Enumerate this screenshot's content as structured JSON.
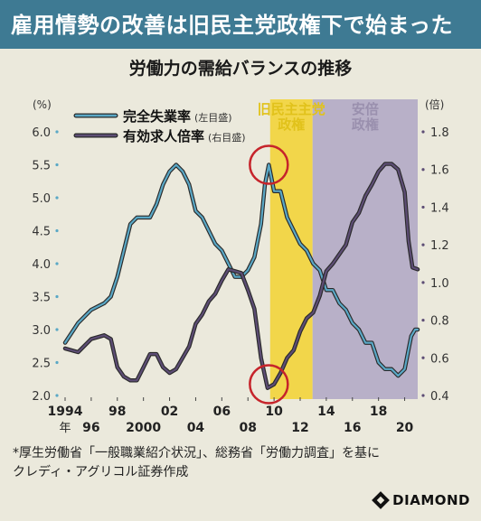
{
  "banner": {
    "title": "雇用情勢の改善は旧民主党政権下で始まった"
  },
  "chart_data": {
    "type": "line",
    "title": "労働力の需給バランスの推移",
    "y_left_unit": "(%)",
    "y_right_unit": "(倍)",
    "y_left_ticks": [
      "6.0",
      "5.5",
      "5.0",
      "4.5",
      "4.0",
      "3.5",
      "3.0",
      "2.5",
      "2.0"
    ],
    "y_right_ticks": [
      "1.8",
      "1.6",
      "1.4",
      "1.2",
      "1.0",
      "0.8",
      "0.6",
      "0.4"
    ],
    "ylim_left": [
      2.0,
      6.0
    ],
    "ylim_right": [
      0.4,
      1.8
    ],
    "xlim": [
      1994,
      2021
    ],
    "x_ticks_top": [
      {
        "value": 1994,
        "label": "1994"
      },
      {
        "value": 1998,
        "label": "98"
      },
      {
        "value": 2002,
        "label": "02"
      },
      {
        "value": 2006,
        "label": "06"
      },
      {
        "value": 2010,
        "label": "10"
      },
      {
        "value": 2014,
        "label": "14"
      },
      {
        "value": 2018,
        "label": "18"
      }
    ],
    "x_ticks_bottom": [
      {
        "value": 1996,
        "label": "96"
      },
      {
        "value": 2000,
        "label": "2000"
      },
      {
        "value": 2004,
        "label": "04"
      },
      {
        "value": 2008,
        "label": "08"
      },
      {
        "value": 2012,
        "label": "12"
      },
      {
        "value": 2016,
        "label": "16"
      },
      {
        "value": 2020,
        "label": "20"
      }
    ],
    "x_year_suffix": "年",
    "shaded_periods": [
      {
        "label_line1": "旧民主主党",
        "label_line2": "政権",
        "start": 2009.7,
        "end": 2012.95,
        "color": "#f2d64a",
        "label_color": "#e1c21a"
      },
      {
        "label_line1": "安倍",
        "label_line2": "政権",
        "start": 2012.95,
        "end": 2021,
        "color": "#b8b0c8",
        "label_color": "#9a90ae"
      }
    ],
    "highlight_circles": [
      {
        "x": 2009.6,
        "y_axis": "left",
        "y": 5.5
      },
      {
        "x": 2009.6,
        "y_axis": "right",
        "y": 0.46
      }
    ],
    "series": [
      {
        "name": "完全失業率",
        "axis_note": "(左目盛)",
        "axis": "left",
        "color": "#5aa8c6",
        "points": [
          [
            1994.0,
            2.8
          ],
          [
            1995.0,
            3.1
          ],
          [
            1996.0,
            3.3
          ],
          [
            1997.0,
            3.4
          ],
          [
            1997.5,
            3.5
          ],
          [
            1998.0,
            3.8
          ],
          [
            1998.5,
            4.2
          ],
          [
            1999.0,
            4.6
          ],
          [
            1999.5,
            4.7
          ],
          [
            2000.0,
            4.7
          ],
          [
            2000.5,
            4.7
          ],
          [
            2001.0,
            4.9
          ],
          [
            2001.5,
            5.2
          ],
          [
            2002.0,
            5.4
          ],
          [
            2002.5,
            5.5
          ],
          [
            2003.0,
            5.4
          ],
          [
            2003.5,
            5.2
          ],
          [
            2004.0,
            4.8
          ],
          [
            2004.5,
            4.7
          ],
          [
            2005.0,
            4.5
          ],
          [
            2005.5,
            4.3
          ],
          [
            2006.0,
            4.2
          ],
          [
            2006.5,
            4.0
          ],
          [
            2007.0,
            3.8
          ],
          [
            2007.5,
            3.8
          ],
          [
            2008.0,
            3.9
          ],
          [
            2008.5,
            4.1
          ],
          [
            2009.0,
            4.6
          ],
          [
            2009.3,
            5.2
          ],
          [
            2009.6,
            5.5
          ],
          [
            2010.0,
            5.1
          ],
          [
            2010.5,
            5.1
          ],
          [
            2011.0,
            4.7
          ],
          [
            2011.5,
            4.5
          ],
          [
            2012.0,
            4.3
          ],
          [
            2012.5,
            4.2
          ],
          [
            2013.0,
            4.0
          ],
          [
            2013.5,
            3.9
          ],
          [
            2014.0,
            3.6
          ],
          [
            2014.5,
            3.6
          ],
          [
            2015.0,
            3.4
          ],
          [
            2015.5,
            3.3
          ],
          [
            2016.0,
            3.1
          ],
          [
            2016.5,
            3.0
          ],
          [
            2017.0,
            2.8
          ],
          [
            2017.5,
            2.8
          ],
          [
            2018.0,
            2.5
          ],
          [
            2018.5,
            2.4
          ],
          [
            2019.0,
            2.4
          ],
          [
            2019.5,
            2.3
          ],
          [
            2020.0,
            2.4
          ],
          [
            2020.5,
            2.9
          ],
          [
            2020.8,
            3.0
          ],
          [
            2021.0,
            3.0
          ]
        ]
      },
      {
        "name": "有効求人倍率",
        "axis_note": "(右目盛)",
        "axis": "right",
        "color": "#5d4d75",
        "points": [
          [
            1994.0,
            0.65
          ],
          [
            1995.0,
            0.63
          ],
          [
            1996.0,
            0.7
          ],
          [
            1997.0,
            0.72
          ],
          [
            1997.5,
            0.7
          ],
          [
            1998.0,
            0.55
          ],
          [
            1998.5,
            0.5
          ],
          [
            1999.0,
            0.48
          ],
          [
            1999.5,
            0.48
          ],
          [
            2000.0,
            0.55
          ],
          [
            2000.5,
            0.62
          ],
          [
            2001.0,
            0.62
          ],
          [
            2001.5,
            0.55
          ],
          [
            2002.0,
            0.52
          ],
          [
            2002.5,
            0.54
          ],
          [
            2003.0,
            0.6
          ],
          [
            2003.5,
            0.66
          ],
          [
            2004.0,
            0.78
          ],
          [
            2004.5,
            0.83
          ],
          [
            2005.0,
            0.9
          ],
          [
            2005.5,
            0.94
          ],
          [
            2006.0,
            1.01
          ],
          [
            2006.5,
            1.07
          ],
          [
            2007.0,
            1.06
          ],
          [
            2007.5,
            1.05
          ],
          [
            2008.0,
            0.96
          ],
          [
            2008.5,
            0.86
          ],
          [
            2009.0,
            0.6
          ],
          [
            2009.5,
            0.44
          ],
          [
            2010.0,
            0.46
          ],
          [
            2010.5,
            0.52
          ],
          [
            2011.0,
            0.6
          ],
          [
            2011.5,
            0.64
          ],
          [
            2012.0,
            0.74
          ],
          [
            2012.5,
            0.81
          ],
          [
            2013.0,
            0.84
          ],
          [
            2013.5,
            0.93
          ],
          [
            2014.0,
            1.06
          ],
          [
            2014.5,
            1.1
          ],
          [
            2015.0,
            1.15
          ],
          [
            2015.5,
            1.2
          ],
          [
            2016.0,
            1.32
          ],
          [
            2016.5,
            1.37
          ],
          [
            2017.0,
            1.46
          ],
          [
            2017.5,
            1.52
          ],
          [
            2018.0,
            1.59
          ],
          [
            2018.5,
            1.63
          ],
          [
            2019.0,
            1.63
          ],
          [
            2019.5,
            1.6
          ],
          [
            2020.0,
            1.48
          ],
          [
            2020.3,
            1.22
          ],
          [
            2020.6,
            1.08
          ],
          [
            2021.0,
            1.07
          ]
        ]
      }
    ]
  },
  "source": {
    "line1": "*厚生労働省「一般職業紹介状況」、総務省「労働力調査」を基に",
    "line2": "クレディ・アグリコル証券作成"
  },
  "logo": {
    "text": "DIAMOND"
  }
}
